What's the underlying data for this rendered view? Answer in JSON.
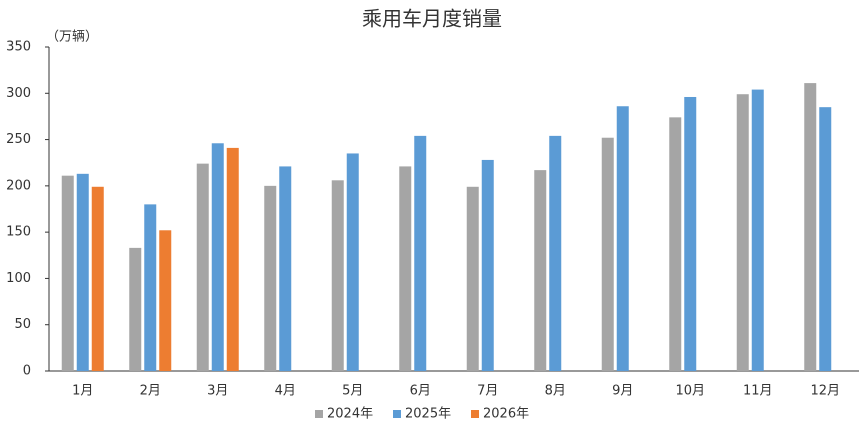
{
  "chart_data": {
    "type": "bar",
    "title": "乘用车月度销量",
    "y_label": "（万辆）",
    "categories": [
      "1月",
      "2月",
      "3月",
      "4月",
      "5月",
      "6月",
      "7月",
      "8月",
      "9月",
      "10月",
      "11月",
      "12月"
    ],
    "series": [
      {
        "name": "2024年",
        "color": "#a5a5a5",
        "values": [
          211,
          133,
          224,
          200,
          206,
          221,
          199,
          217,
          252,
          274,
          299,
          311
        ]
      },
      {
        "name": "2025年",
        "color": "#5b9bd5",
        "values": [
          213,
          180,
          246,
          221,
          235,
          254,
          228,
          254,
          286,
          296,
          304,
          285
        ]
      },
      {
        "name": "2026年",
        "color": "#ed7d31",
        "values": [
          199,
          152,
          241,
          null,
          null,
          null,
          null,
          null,
          null,
          null,
          null,
          null
        ]
      }
    ],
    "ylim": [
      0,
      350
    ],
    "yticks": [
      0,
      50,
      100,
      150,
      200,
      250,
      300,
      350
    ],
    "grid": false,
    "legend": "bottom"
  }
}
